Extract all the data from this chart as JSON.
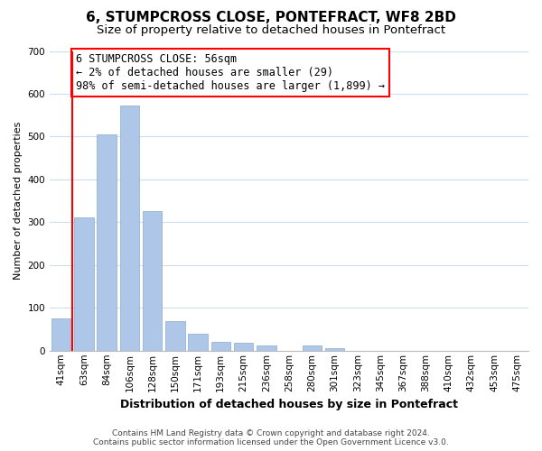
{
  "title": "6, STUMPCROSS CLOSE, PONTEFRACT, WF8 2BD",
  "subtitle": "Size of property relative to detached houses in Pontefract",
  "xlabel": "Distribution of detached houses by size in Pontefract",
  "ylabel": "Number of detached properties",
  "bar_labels": [
    "41sqm",
    "63sqm",
    "84sqm",
    "106sqm",
    "128sqm",
    "150sqm",
    "171sqm",
    "193sqm",
    "215sqm",
    "236sqm",
    "258sqm",
    "280sqm",
    "301sqm",
    "323sqm",
    "345sqm",
    "367sqm",
    "388sqm",
    "410sqm",
    "432sqm",
    "453sqm",
    "475sqm"
  ],
  "bar_values": [
    75,
    312,
    505,
    572,
    327,
    68,
    40,
    20,
    18,
    12,
    0,
    12,
    6,
    0,
    0,
    0,
    0,
    0,
    0,
    0,
    0
  ],
  "bar_color": "#aec6e8",
  "bar_edge_color": "#88aacc",
  "annotation_box_text": "6 STUMPCROSS CLOSE: 56sqm\n← 2% of detached houses are smaller (29)\n98% of semi-detached houses are larger (1,899) →",
  "ylim": [
    0,
    700
  ],
  "yticks": [
    0,
    100,
    200,
    300,
    400,
    500,
    600,
    700
  ],
  "red_line_x": 0.5,
  "footer_line1": "Contains HM Land Registry data © Crown copyright and database right 2024.",
  "footer_line2": "Contains public sector information licensed under the Open Government Licence v3.0.",
  "grid_color": "#ccddf0",
  "background_color": "#ffffff",
  "title_fontsize": 11,
  "subtitle_fontsize": 9.5,
  "xlabel_fontsize": 9,
  "ylabel_fontsize": 8,
  "tick_fontsize": 7.5,
  "annotation_fontsize": 8.5,
  "footer_fontsize": 6.5
}
